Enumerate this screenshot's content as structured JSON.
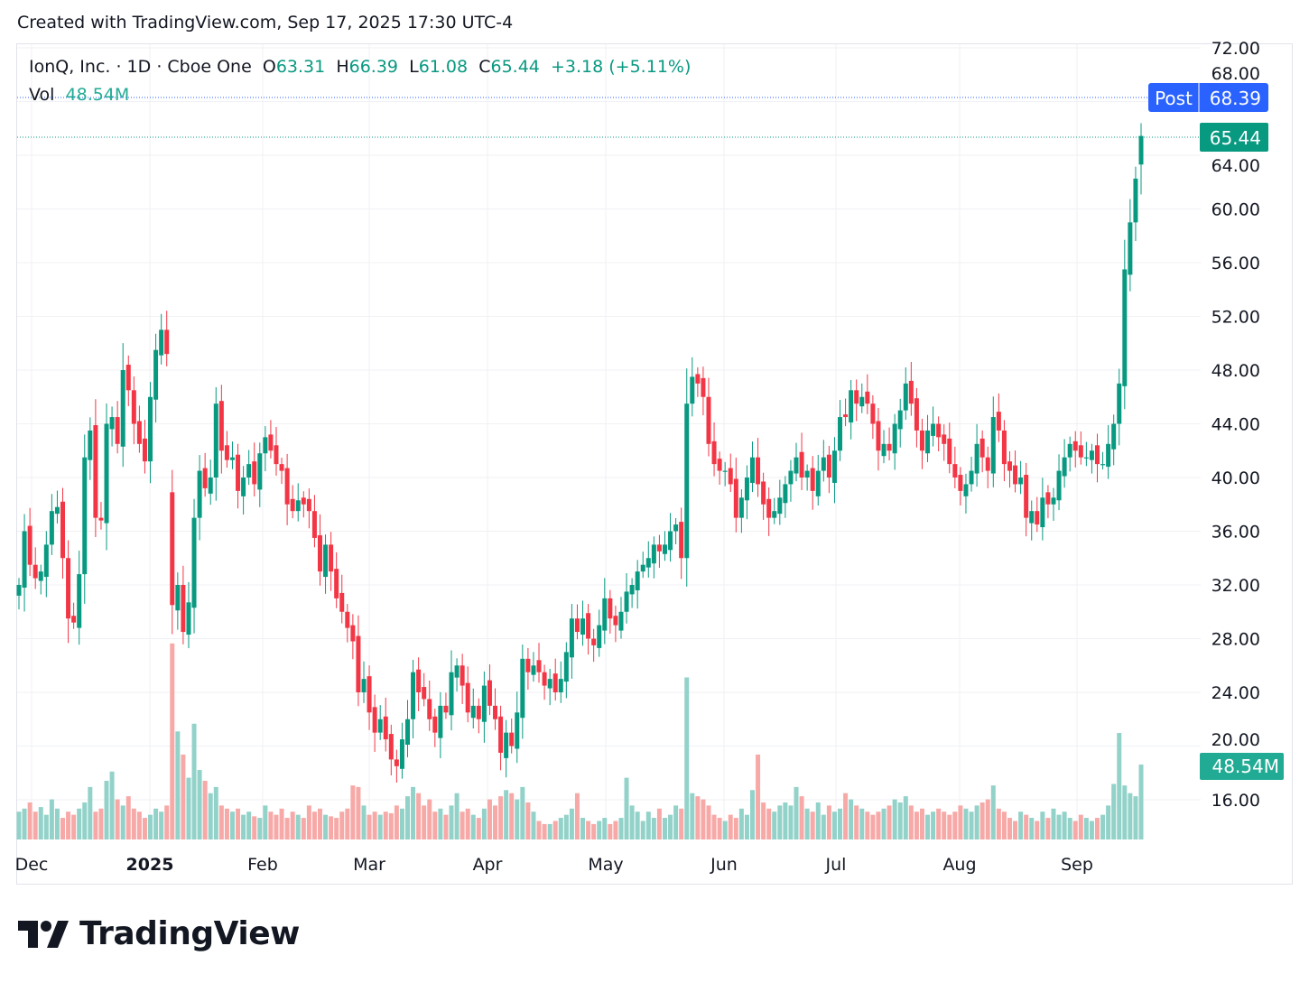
{
  "credit": "Created with TradingView.com, Sep 17, 2025 17:30 UTC-4",
  "legend": {
    "symbol": "IonQ, Inc. · 1D · Cboe One",
    "o_label": "O",
    "o": "63.31",
    "h_label": "H",
    "h": "66.39",
    "l_label": "L",
    "l": "61.08",
    "c_label": "C",
    "c": "65.44",
    "change": "+3.18 (+5.11%)",
    "vol_label": "Vol",
    "vol": "48.54M"
  },
  "labels": {
    "post_tag": "Post",
    "post_price": "68.39",
    "last_price": "65.44",
    "last_volume": "48.54M"
  },
  "brand": "TradingView",
  "colors": {
    "up": "#089981",
    "down": "#F23645",
    "post": "#2962FF",
    "up_volume": "#92d2c9",
    "down_volume": "#f7a9a7"
  },
  "chart_data": {
    "type": "candlestick",
    "title": "",
    "y_ticks": [
      "72.00",
      "68.00",
      "64.00",
      "60.00",
      "56.00",
      "52.00",
      "48.00",
      "44.00",
      "40.00",
      "36.00",
      "32.00",
      "28.00",
      "24.00",
      "20.00",
      "16.00"
    ],
    "ylim": [
      16,
      72
    ],
    "x_ticks": [
      "Dec",
      "2025",
      "Feb",
      "Mar",
      "Apr",
      "May",
      "Jun",
      "Jul",
      "Aug",
      "Sep"
    ],
    "grid": true,
    "last_candle": {
      "open": 63.31,
      "high": 66.39,
      "low": 61.08,
      "close": 65.44
    },
    "close": [
      32.0,
      36.0,
      33.5,
      32.5,
      33.0,
      35.0,
      37.5,
      37.8,
      34.0,
      29.5,
      29.2,
      32.8,
      41.5,
      43.5,
      37.0,
      36.8,
      44.0,
      44.5,
      42.5,
      48.0,
      46.5,
      44.0,
      42.5,
      41.2,
      46.0,
      49.5,
      51.0,
      49.2,
      30.5,
      32.0,
      28.5,
      30.7,
      37.0,
      40.5,
      39.2,
      40.0,
      45.5,
      42.0,
      41.3,
      41.5,
      39.0,
      40.0,
      41.0,
      39.5,
      41.8,
      43.0,
      42.0,
      41.0,
      40.5,
      38.0,
      37.5,
      38.3,
      38.0,
      37.5,
      35.5,
      33.0,
      35.0,
      33.0,
      31.0,
      30.0,
      28.8,
      27.8,
      24.0,
      25.0,
      22.5,
      21.0,
      22.0,
      20.5,
      19.0,
      18.5,
      20.5,
      22.0,
      25.5,
      24.0,
      23.5,
      22.0,
      21.0,
      23.0,
      22.5,
      25.5,
      26.0,
      24.5,
      22.5,
      23.0,
      22.0,
      24.5,
      23.0,
      22.0,
      19.5,
      21.0,
      20.0,
      22.5,
      26.5,
      25.5,
      26.0,
      25.5,
      24.5,
      25.0,
      24.0,
      25.0,
      27.0,
      29.5,
      28.5,
      29.5,
      28.0,
      27.5,
      29.0,
      31.0,
      29.5,
      29.0,
      30.0,
      31.5,
      32.0,
      33.0,
      33.5,
      34.0,
      35.0,
      34.5,
      35.0,
      36.0,
      36.5,
      34.0,
      45.5,
      47.5,
      47.0,
      46.0,
      42.5,
      41.0,
      40.5,
      40.5,
      39.5,
      37.0,
      38.5,
      40.0,
      41.5,
      39.5,
      38.0,
      37.0,
      37.5,
      38.5,
      39.5,
      40.5,
      41.5,
      40.0,
      40.5,
      39.0,
      40.5,
      41.5,
      40.0,
      42.0,
      44.5,
      44.5,
      46.5,
      45.5,
      46.0,
      45.5,
      44.0,
      42.0,
      42.5,
      42.0,
      44.0,
      45.0,
      47.0,
      45.5,
      43.5,
      42.0,
      43.5,
      44.0,
      43.0,
      42.5,
      41.0,
      40.0,
      39.0,
      39.5,
      40.5,
      42.5,
      41.5,
      40.5,
      44.5,
      43.5,
      41.0,
      40.5,
      39.5,
      40.0,
      37.0,
      37.5,
      36.5,
      38.5,
      38.0,
      38.5,
      40.5,
      41.5,
      42.5,
      42.0,
      41.5,
      41.5,
      42.0,
      41.0,
      41.0,
      42.5,
      44.0,
      47.0,
      55.5,
      59.0,
      62.26,
      65.44
    ],
    "volume_millions": [
      18,
      20,
      24,
      18,
      21,
      16,
      26,
      20,
      14,
      18,
      16,
      20,
      24,
      34,
      18,
      20,
      38,
      44,
      26,
      22,
      28,
      20,
      18,
      14,
      16,
      20,
      18,
      22,
      127,
      70,
      55,
      40,
      75,
      45,
      38,
      30,
      34,
      22,
      20,
      18,
      20,
      16,
      18,
      15,
      14,
      22,
      18,
      16,
      20,
      14,
      18,
      16,
      14,
      22,
      18,
      20,
      16,
      15,
      14,
      18,
      20,
      35,
      34,
      22,
      16,
      18,
      16,
      18,
      17,
      22,
      20,
      28,
      34,
      30,
      22,
      26,
      18,
      20,
      16,
      22,
      30,
      18,
      20,
      16,
      14,
      20,
      26,
      22,
      28,
      32,
      30,
      26,
      34,
      24,
      18,
      12,
      10,
      10,
      12,
      14,
      16,
      20,
      30,
      14,
      12,
      10,
      12,
      14,
      10,
      12,
      14,
      40,
      22,
      18,
      12,
      18,
      14,
      20,
      14,
      16,
      22,
      20,
      105,
      30,
      28,
      26,
      22,
      16,
      14,
      12,
      16,
      14,
      20,
      16,
      32,
      55,
      24,
      20,
      18,
      22,
      24,
      22,
      34,
      28,
      20,
      18,
      24,
      16,
      22,
      18,
      20,
      30,
      26,
      22,
      20,
      18,
      16,
      18,
      20,
      22,
      26,
      24,
      28,
      22,
      18,
      20,
      16,
      18,
      20,
      18,
      16,
      18,
      22,
      20,
      18,
      22,
      24,
      26,
      35,
      20,
      18,
      14,
      12,
      18,
      16,
      14,
      12,
      18,
      14,
      20,
      16,
      18,
      14,
      12,
      16,
      14,
      12,
      14,
      16,
      22,
      36,
      69,
      35,
      30,
      28,
      48.54
    ]
  }
}
